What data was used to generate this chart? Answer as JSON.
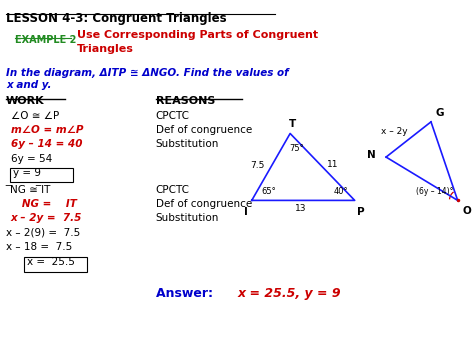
{
  "title": "LESSON 4-3: Congruent Triangles",
  "example_label": "EXAMPLE 2",
  "example_title": "Use Corresponding Parts of Congruent\nTriangles",
  "problem_line1": "In the diagram, ΔITP ≅ ΔNGO. Find the values of",
  "problem_line2": "x and y.",
  "work_header": "WORK",
  "reasons_header": "REASONS",
  "answer_label": "Answer: ",
  "answer_value": "x = 25.5, y = 9",
  "bg_color": "#ffffff",
  "title_color": "#000000",
  "example_color": "#228B22",
  "red_color": "#cc0000",
  "blue_color": "#0000cc",
  "black_color": "#000000",
  "tri1_color": "#1a1aff",
  "tri2_color": "#1a1aff",
  "arc_color": "#cc0000"
}
